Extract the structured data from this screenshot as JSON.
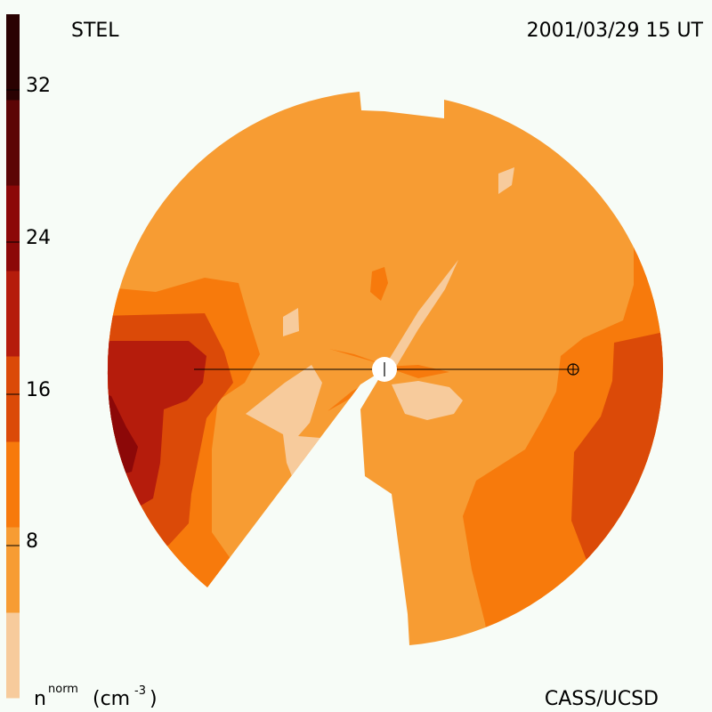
{
  "header": {
    "left_label": "STEL",
    "right_label": "2001/03/29 15 UT"
  },
  "footer": {
    "unit_prefix": "n",
    "unit_superscript": "norm",
    "unit_open": "(cm",
    "unit_exponent": "-3",
    "unit_close": ")",
    "credit": "CASS/UCSD"
  },
  "colorbar": {
    "ticks": [
      "32",
      "24",
      "16",
      "8"
    ],
    "tick_values": [
      32,
      24,
      16,
      8
    ],
    "range": [
      0,
      36
    ],
    "band_colors": [
      "#f7cb9c",
      "#f79c33",
      "#f77a0c",
      "#db4a08",
      "#b51c0c",
      "#8c0808",
      "#5c0505",
      "#2a0202"
    ]
  },
  "map": {
    "colors": {
      "lightest": "#f7cb9c",
      "base": "#f79c33",
      "mid": "#f77a0c",
      "high": "#db4a08",
      "higher": "#b51c0c",
      "highest": "#8c0808",
      "sun": "#ffffff",
      "line": "#000000"
    },
    "markers": [
      "sun-marker",
      "earth-marker"
    ]
  }
}
